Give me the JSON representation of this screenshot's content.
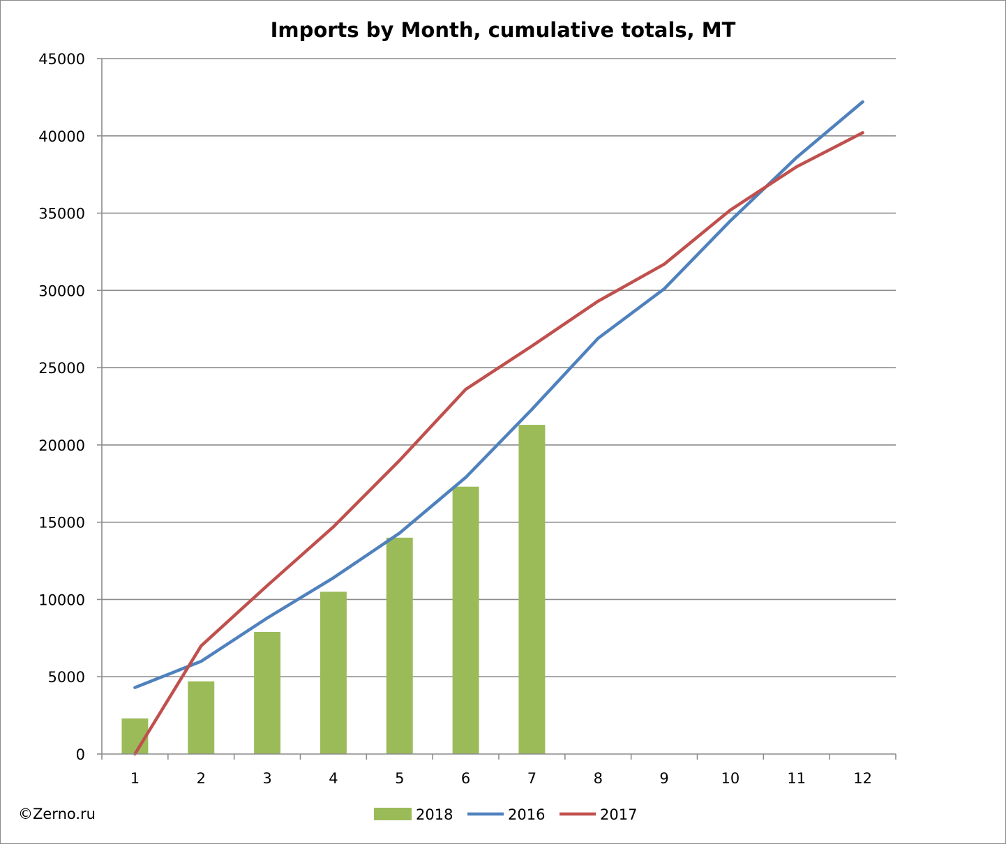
{
  "chart_data": {
    "type": "bar",
    "title": "Imports by Month, cumulative totals, MT",
    "xlabel": "",
    "ylabel": "",
    "categories": [
      "1",
      "2",
      "3",
      "4",
      "5",
      "6",
      "7",
      "8",
      "9",
      "10",
      "11",
      "12"
    ],
    "ylim": [
      0,
      45000
    ],
    "yticks": [
      "0",
      "5000",
      "10000",
      "15000",
      "20000",
      "25000",
      "30000",
      "35000",
      "40000",
      "45000"
    ],
    "grid": true,
    "legend_position": "bottom",
    "series": [
      {
        "name": "2018",
        "kind": "bar",
        "color": "#9bbb59",
        "values": [
          2300,
          4700,
          7900,
          10500,
          14000,
          17300,
          21300,
          null,
          null,
          null,
          null,
          null
        ]
      },
      {
        "name": "2016",
        "kind": "line",
        "color": "#4f81bd",
        "values": [
          4300,
          6000,
          8800,
          11400,
          14300,
          17900,
          22300,
          26900,
          30100,
          34500,
          38600,
          42200
        ]
      },
      {
        "name": "2017",
        "kind": "line",
        "color": "#c0504d",
        "values": [
          0,
          7000,
          10900,
          14700,
          19000,
          23600,
          26400,
          29300,
          31700,
          35200,
          38000,
          40200
        ]
      }
    ]
  },
  "watermark": "©Zerno.ru"
}
